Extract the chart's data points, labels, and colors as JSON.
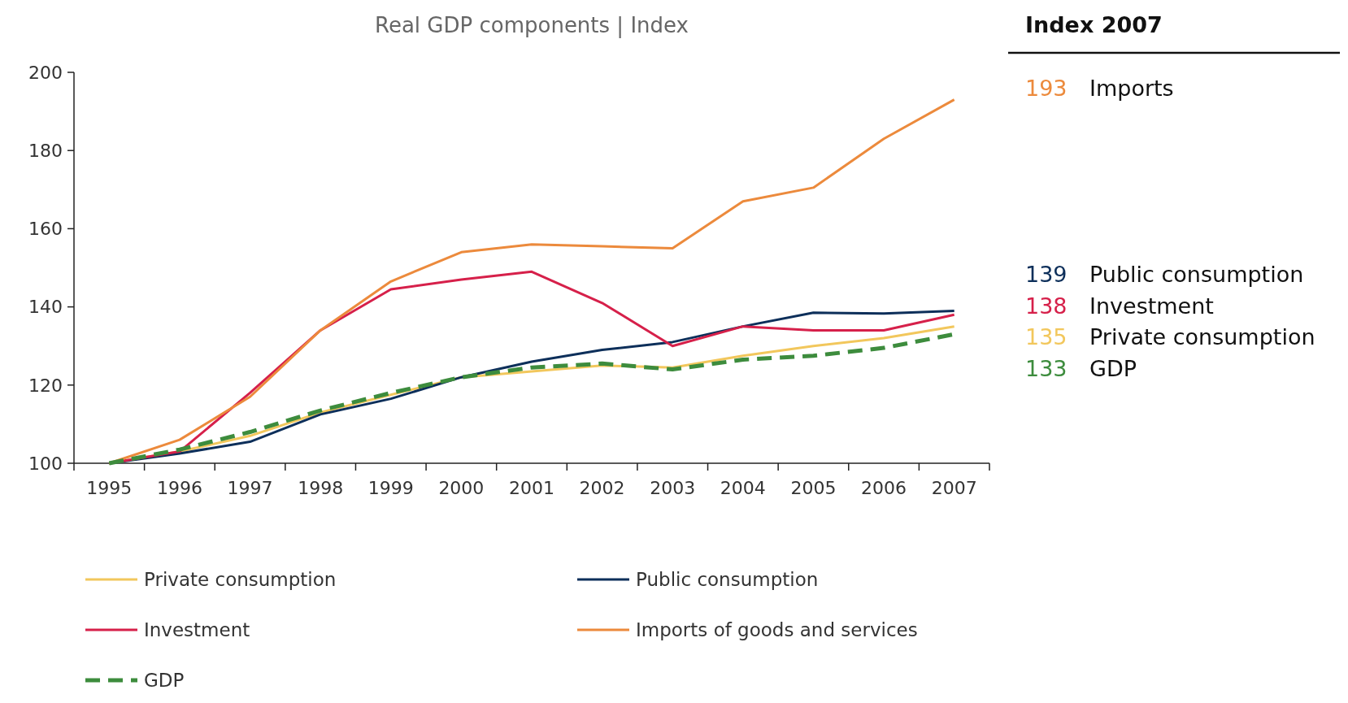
{
  "chart_data": {
    "type": "line",
    "title": "Real GDP components | Index",
    "categories": [
      "1995",
      "1996",
      "1997",
      "1998",
      "1999",
      "2000",
      "2001",
      "2002",
      "2003",
      "2004",
      "2005",
      "2006",
      "2007"
    ],
    "series": [
      {
        "name": "Private consumption",
        "color": "#f2c75c",
        "values": [
          100,
          103,
          107,
          113,
          117.5,
          122,
          123.5,
          125,
          124.5,
          127.5,
          130,
          132,
          135
        ]
      },
      {
        "name": "Public consumption",
        "color": "#0d2f5a",
        "values": [
          100,
          102.5,
          105.5,
          112.5,
          116.5,
          122,
          126,
          129,
          131,
          135,
          138.5,
          138.3,
          139
        ]
      },
      {
        "name": "Investment",
        "color": "#d6204a",
        "values": [
          100,
          103,
          118,
          134,
          144.5,
          147,
          149,
          141,
          130,
          135,
          134,
          134,
          138
        ]
      },
      {
        "name": "Imports of goods and services",
        "color": "#ec8a3c",
        "values": [
          100,
          106,
          117,
          134,
          146.5,
          154,
          156,
          155.5,
          155,
          167,
          170.5,
          183,
          193
        ]
      },
      {
        "name": "GDP",
        "color": "#3d8c3d",
        "line_style": "dashed",
        "values": [
          100,
          103.5,
          108,
          113.5,
          118,
          122,
          124.5,
          125.5,
          124,
          126.5,
          127.5,
          129.5,
          133
        ]
      }
    ],
    "ylim": [
      100,
      200
    ],
    "yticks": [
      100,
      120,
      140,
      160,
      180,
      200
    ],
    "grid": false,
    "legend": "bottom",
    "marker": "none",
    "annotations": [
      "Index 2007",
      "193",
      "Imports",
      "139",
      "Public consumption",
      "138",
      "Investment",
      "135",
      "Private consumption",
      "133",
      "GDP"
    ]
  }
}
